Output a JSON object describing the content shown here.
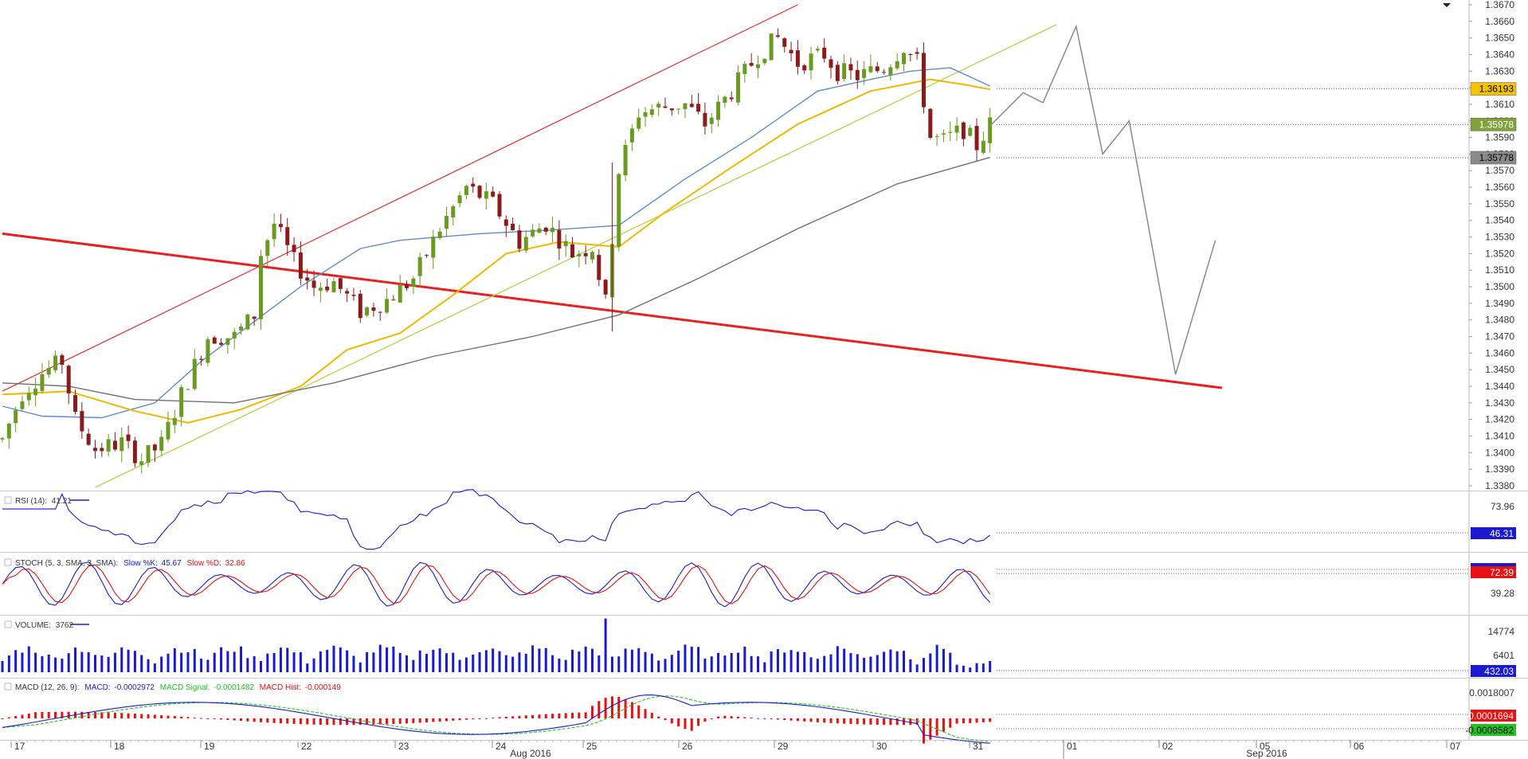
{
  "colors": {
    "bull": "#6a9a1f",
    "bear": "#8b1a1a",
    "sma_fast": "#5b8ec8",
    "sma_mid": "#f2b800",
    "sma_slow": "#707070",
    "channel_thin": "#e03030",
    "trend_thick": "#e82020",
    "support_line": "#b8d24a",
    "projection": "#8a8a8a",
    "rsi": "#1a1ad0",
    "stoch_k": "#1a1ad0",
    "stoch_d": "#e81010",
    "volume": "#1a1ad0",
    "macd": "#1a1ad0",
    "macd_signal": "#22c422",
    "macd_hist": "#e81010"
  },
  "price_axis": {
    "ticks": [
      "1.3670",
      "1.3660",
      "1.3650",
      "1.3640",
      "1.3630",
      "1.3620",
      "1.3610",
      "1.3600",
      "1.3590",
      "1.3580",
      "1.3570",
      "1.3560",
      "1.3550",
      "1.3540",
      "1.3530",
      "1.3520",
      "1.3510",
      "1.3500",
      "1.3490",
      "1.3480",
      "1.3470",
      "1.3460",
      "1.3450",
      "1.3440",
      "1.3430",
      "1.3420",
      "1.3410",
      "1.3400",
      "1.3390",
      "1.3380"
    ],
    "top_value": 1.367,
    "bottom_value": 1.3379,
    "badges": [
      {
        "label": "1.36193",
        "value": 1.36193,
        "bg": "#f5c400",
        "fg": "#000000"
      },
      {
        "label": "1.35978",
        "value": 1.35978,
        "bg": "#7fa33a",
        "fg": "#ffffff"
      },
      {
        "label": "1.35778",
        "value": 1.35778,
        "bg": "#8a8a8a",
        "fg": "#000000"
      }
    ]
  },
  "rsi": {
    "legend_name": "RSI (14):",
    "legend_value": "41.21",
    "axis_label": "73.96",
    "badge": "46.31"
  },
  "stoch": {
    "legend_name": "STOCH (5, 3, SMA, 3, SMA):",
    "k_label": "Slow %K:",
    "k_value": "45.67",
    "d_label": "Slow %D:",
    "d_value": "32.86",
    "axis_label": "39.28",
    "badge": "72.39"
  },
  "volume": {
    "legend_name": "VOLUME:",
    "legend_value": "3762",
    "axis_labels": [
      "14774",
      "6401"
    ],
    "badge": "432.03"
  },
  "macd": {
    "legend_name": "MACD (12, 26, 9):",
    "macd_label": "MACD:",
    "macd_value": "-0.0002972",
    "signal_label": "MACD Signal:",
    "signal_value": "-0.0001482",
    "hist_label": "MACD Hist:",
    "hist_value": "-0.000149",
    "axis_label": "0.0018007",
    "badges": [
      "0.0001694",
      "-0.0008582"
    ]
  },
  "time_axis": {
    "day_labels": [
      "17",
      "18",
      "19",
      "22",
      "23",
      "24",
      "25",
      "26",
      "29",
      "30",
      "31",
      "01",
      "02",
      "05",
      "06",
      "07"
    ],
    "month_labels": [
      "Aug 2016",
      "Sep 2016"
    ]
  },
  "chart_data": {
    "type": "candlestick",
    "instrument_price_range": [
      1.3379,
      1.367
    ],
    "x_categories": [
      "17",
      "18",
      "19",
      "22",
      "23",
      "24",
      "25",
      "26",
      "29",
      "30",
      "31",
      "01",
      "02",
      "05",
      "06",
      "07"
    ],
    "key_levels": [
      1.36193,
      1.35978,
      1.35778
    ],
    "moving_averages": [
      {
        "points": [
          [
            0,
            1.3428
          ],
          [
            6,
            1.3422
          ],
          [
            15,
            1.3421
          ],
          [
            23,
            1.343
          ],
          [
            30,
            1.3455
          ],
          [
            45,
            1.35
          ],
          [
            54,
            1.3523
          ],
          [
            60,
            1.3528
          ],
          [
            72,
            1.3532
          ],
          [
            82,
            1.3534
          ],
          [
            93,
            1.3537
          ],
          [
            103,
            1.3565
          ],
          [
            113,
            1.359
          ],
          [
            123,
            1.3618
          ],
          [
            131,
            1.3625
          ],
          [
            137,
            1.363
          ],
          [
            143,
            1.3632
          ],
          [
            149,
            1.3621
          ]
        ]
      },
      {
        "points": [
          [
            0,
            1.3435
          ],
          [
            10,
            1.3437
          ],
          [
            20,
            1.3425
          ],
          [
            28,
            1.3418
          ],
          [
            36,
            1.3426
          ],
          [
            45,
            1.344
          ],
          [
            52,
            1.3462
          ],
          [
            60,
            1.3472
          ],
          [
            68,
            1.3495
          ],
          [
            76,
            1.352
          ],
          [
            84,
            1.3527
          ],
          [
            93,
            1.3524
          ],
          [
            100,
            1.3545
          ],
          [
            110,
            1.3572
          ],
          [
            120,
            1.3598
          ],
          [
            131,
            1.3618
          ],
          [
            140,
            1.3625
          ],
          [
            145,
            1.3622
          ],
          [
            149,
            1.3619
          ]
        ]
      },
      {
        "points": [
          [
            0,
            1.3442
          ],
          [
            10,
            1.344
          ],
          [
            20,
            1.3432
          ],
          [
            35,
            1.343
          ],
          [
            50,
            1.3442
          ],
          [
            65,
            1.3458
          ],
          [
            80,
            1.347
          ],
          [
            93,
            1.3483
          ],
          [
            105,
            1.3505
          ],
          [
            120,
            1.3535
          ],
          [
            135,
            1.3562
          ],
          [
            149,
            1.3578
          ]
        ]
      }
    ],
    "drawn_lines": [
      {
        "from": [
          0,
          1.3437
        ],
        "to": [
          120,
          1.367
        ]
      },
      {
        "from": [
          0,
          1.3532
        ],
        "to": [
          184,
          1.3439
        ]
      },
      {
        "from": [
          14,
          1.3379
        ],
        "to": [
          159,
          1.3658
        ]
      }
    ],
    "projection_path": [
      [
        149,
        1.3597
      ],
      [
        154,
        1.3617
      ],
      [
        157,
        1.3611
      ],
      [
        162,
        1.3657
      ],
      [
        166,
        1.358
      ],
      [
        170,
        1.36
      ],
      [
        177,
        1.3447
      ],
      [
        183,
        1.3528
      ]
    ],
    "rsi_range": [
      20,
      85
    ],
    "stoch_range": [
      0,
      100
    ],
    "volume_max": 16000,
    "macd_range": [
      -0.0012,
      0.0024
    ]
  }
}
